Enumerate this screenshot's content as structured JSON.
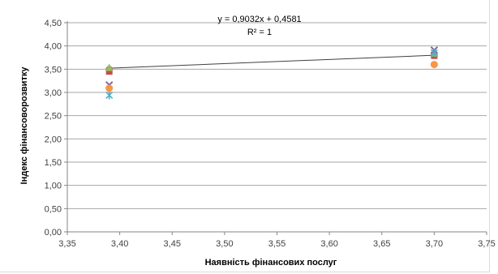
{
  "chart_data": {
    "type": "scatter",
    "xlabel": "Наявність фінансових послуг",
    "ylabel": "Індекс фінансоворозвитку",
    "xlim": [
      3.35,
      3.75
    ],
    "ylim": [
      0,
      4.5
    ],
    "x_ticks": [
      "3,35",
      "3,40",
      "3,45",
      "3,50",
      "3,55",
      "3,60",
      "3,65",
      "3,70",
      "3,75"
    ],
    "y_ticks": [
      "0,00",
      "0,50",
      "1,00",
      "1,50",
      "2,00",
      "2,50",
      "3,00",
      "3,50",
      "4,00",
      "4,50"
    ],
    "grid": "horizontal",
    "legend": "none",
    "series": [
      {
        "marker": "diamond",
        "color": "#4f81bd",
        "points": [
          [
            3.39,
            3.52
          ],
          [
            3.7,
            3.82
          ]
        ]
      },
      {
        "marker": "square",
        "color": "#c0504d",
        "points": [
          [
            3.39,
            3.45
          ],
          [
            3.7,
            3.79
          ]
        ]
      },
      {
        "marker": "triangle",
        "color": "#9bbb59",
        "points": [
          [
            3.39,
            3.53
          ],
          [
            3.7,
            3.84
          ]
        ]
      },
      {
        "marker": "x",
        "color": "#8064a2",
        "points": [
          [
            3.39,
            3.16
          ],
          [
            3.7,
            3.91
          ]
        ]
      },
      {
        "marker": "star",
        "color": "#4bacc6",
        "points": [
          [
            3.39,
            2.94
          ],
          [
            3.7,
            3.85
          ]
        ]
      },
      {
        "marker": "circle",
        "color": "#f79646",
        "points": [
          [
            3.39,
            3.09
          ],
          [
            3.7,
            3.6
          ]
        ]
      }
    ],
    "trendline": {
      "x": [
        3.39,
        3.7
      ],
      "y": [
        3.52,
        3.8
      ],
      "color": "#404040"
    },
    "annotations": [
      "y = 0,9032x + 0,4581",
      "R² = 1"
    ]
  }
}
